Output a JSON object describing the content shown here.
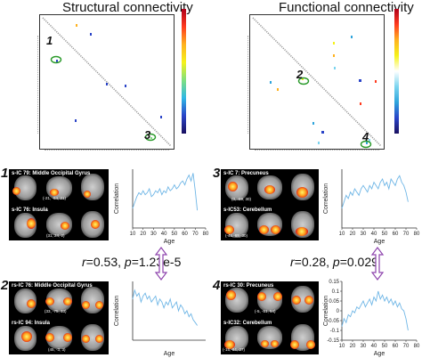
{
  "titles": {
    "structural": "Structural connectivity",
    "functional": "Functional connectivity"
  },
  "markers": [
    "1",
    "2",
    "3",
    "4"
  ],
  "panels": [
    {
      "num": "1",
      "top_label": "s-IC 79: Middle Occipital Gyrus",
      "top_coord": "(-21, -84, 21)",
      "bottom_label": "s-IC 76: Insula",
      "bottom_coord": "(31, 24, 2)",
      "plot": {
        "xlabel": "Age",
        "ylabel": "Correlation"
      }
    },
    {
      "num": "2",
      "top_label": "rs-IC 76: Middle Occipital Gyrus",
      "top_coord": "(33, -75, 33)",
      "bottom_label": "rs-IC 94: Insula",
      "bottom_coord": "(45, -3, 3)",
      "plot": {
        "xlabel": "Age",
        "ylabel": "Correlation"
      }
    },
    {
      "num": "3",
      "top_label": "s-IC 7: Precuneus",
      "top_coord": "(0, -69, 30)",
      "bottom_label": "s-IC53: Cerebellum",
      "bottom_coord": "(-45,-69,-30)",
      "plot": {
        "xlabel": "Age",
        "ylabel": "Correlation"
      }
    },
    {
      "num": "4",
      "top_label": "rs-IC 30: Precuneus",
      "top_coord": "(-5, -51, 54)",
      "bottom_label": "s-IC32: Cerebellum",
      "bottom_coord": "(-15,-84,-27)",
      "plot": {
        "xlabel": "Age",
        "ylabel": "Correlation"
      }
    }
  ],
  "stats": {
    "left": {
      "r": "0.53",
      "p": "1.23e-5"
    },
    "right": {
      "r": "0.28",
      "p": "0.029"
    }
  },
  "chart_data": [
    {
      "type": "line",
      "panel": "1",
      "xlabel": "Age",
      "ylabel": "Correlation",
      "xlim": [
        10,
        80
      ],
      "xticks": [
        "10",
        "20",
        "30",
        "40",
        "50",
        "60",
        "70",
        "80"
      ],
      "ylim": [
        -0.05,
        0.25
      ],
      "yticks": [],
      "x": [
        10,
        12,
        14,
        16,
        18,
        20,
        22,
        24,
        26,
        28,
        30,
        32,
        34,
        36,
        38,
        40,
        42,
        44,
        46,
        48,
        50,
        52,
        54,
        56,
        58,
        60,
        62,
        64,
        66,
        68,
        70,
        72
      ],
      "values": [
        0.05,
        0.08,
        0.11,
        0.13,
        0.12,
        0.14,
        0.12,
        0.13,
        0.15,
        0.11,
        0.12,
        0.14,
        0.13,
        0.15,
        0.12,
        0.14,
        0.13,
        0.16,
        0.14,
        0.15,
        0.17,
        0.15,
        0.16,
        0.18,
        0.19,
        0.17,
        0.2,
        0.22,
        0.19,
        0.23,
        0.14,
        0.04
      ]
    },
    {
      "type": "line",
      "panel": "2",
      "xlabel": "Age",
      "ylabel": "Correlation",
      "xlim": [
        10,
        80
      ],
      "xticks": [],
      "ylim": [
        0.0,
        0.2
      ],
      "yticks": [],
      "x": [
        10,
        12,
        14,
        16,
        18,
        20,
        22,
        24,
        26,
        28,
        30,
        32,
        34,
        36,
        38,
        40,
        42,
        44,
        46,
        48,
        50,
        52,
        54,
        56,
        58,
        60,
        62,
        64,
        66,
        68,
        70,
        72
      ],
      "values": [
        0.14,
        0.17,
        0.15,
        0.16,
        0.13,
        0.15,
        0.16,
        0.14,
        0.15,
        0.13,
        0.14,
        0.15,
        0.12,
        0.14,
        0.13,
        0.11,
        0.13,
        0.12,
        0.14,
        0.11,
        0.12,
        0.13,
        0.1,
        0.12,
        0.11,
        0.09,
        0.1,
        0.08,
        0.09,
        0.07,
        0.06,
        0.05
      ]
    },
    {
      "type": "line",
      "panel": "3",
      "xlabel": "Age",
      "ylabel": "Correlation",
      "xlim": [
        10,
        80
      ],
      "xticks": [
        "10",
        "20",
        "30",
        "40",
        "50",
        "60",
        "70",
        "80"
      ],
      "ylim": [
        -0.02,
        0.07
      ],
      "yticks": [],
      "x": [
        10,
        12,
        14,
        16,
        18,
        20,
        22,
        24,
        26,
        28,
        30,
        32,
        34,
        36,
        38,
        40,
        42,
        44,
        46,
        48,
        50,
        52,
        54,
        56,
        58,
        60,
        62,
        64,
        66,
        68,
        70,
        72
      ],
      "values": [
        0.01,
        0.02,
        0.03,
        0.025,
        0.035,
        0.03,
        0.04,
        0.035,
        0.03,
        0.04,
        0.045,
        0.04,
        0.035,
        0.045,
        0.04,
        0.05,
        0.045,
        0.04,
        0.05,
        0.055,
        0.045,
        0.05,
        0.04,
        0.055,
        0.05,
        0.045,
        0.055,
        0.06,
        0.05,
        0.045,
        0.035,
        0.02
      ]
    },
    {
      "type": "line",
      "panel": "4",
      "xlabel": "Age",
      "ylabel": "Correlation",
      "xlim": [
        10,
        80
      ],
      "xticks": [
        "10",
        "20",
        "30",
        "40",
        "50",
        "60",
        "70",
        "80"
      ],
      "ylim": [
        -0.15,
        0.15
      ],
      "yticks": [
        "-0.15",
        "-0.1",
        "-0.05",
        "0",
        "0.05",
        "0.1",
        "0.15"
      ],
      "x": [
        10,
        12,
        14,
        16,
        18,
        20,
        22,
        24,
        26,
        28,
        30,
        32,
        34,
        36,
        38,
        40,
        42,
        44,
        46,
        48,
        50,
        52,
        54,
        56,
        58,
        60,
        62,
        64,
        66,
        68,
        70,
        72
      ],
      "values": [
        -0.08,
        -0.04,
        -0.06,
        -0.02,
        -0.03,
        0.0,
        -0.01,
        0.02,
        0.01,
        0.03,
        0.05,
        0.02,
        0.04,
        0.06,
        0.03,
        0.07,
        0.05,
        0.1,
        0.06,
        0.08,
        0.05,
        0.07,
        0.04,
        0.06,
        0.03,
        0.05,
        0.02,
        0.04,
        0.01,
        0.0,
        -0.04,
        -0.1
      ]
    }
  ]
}
